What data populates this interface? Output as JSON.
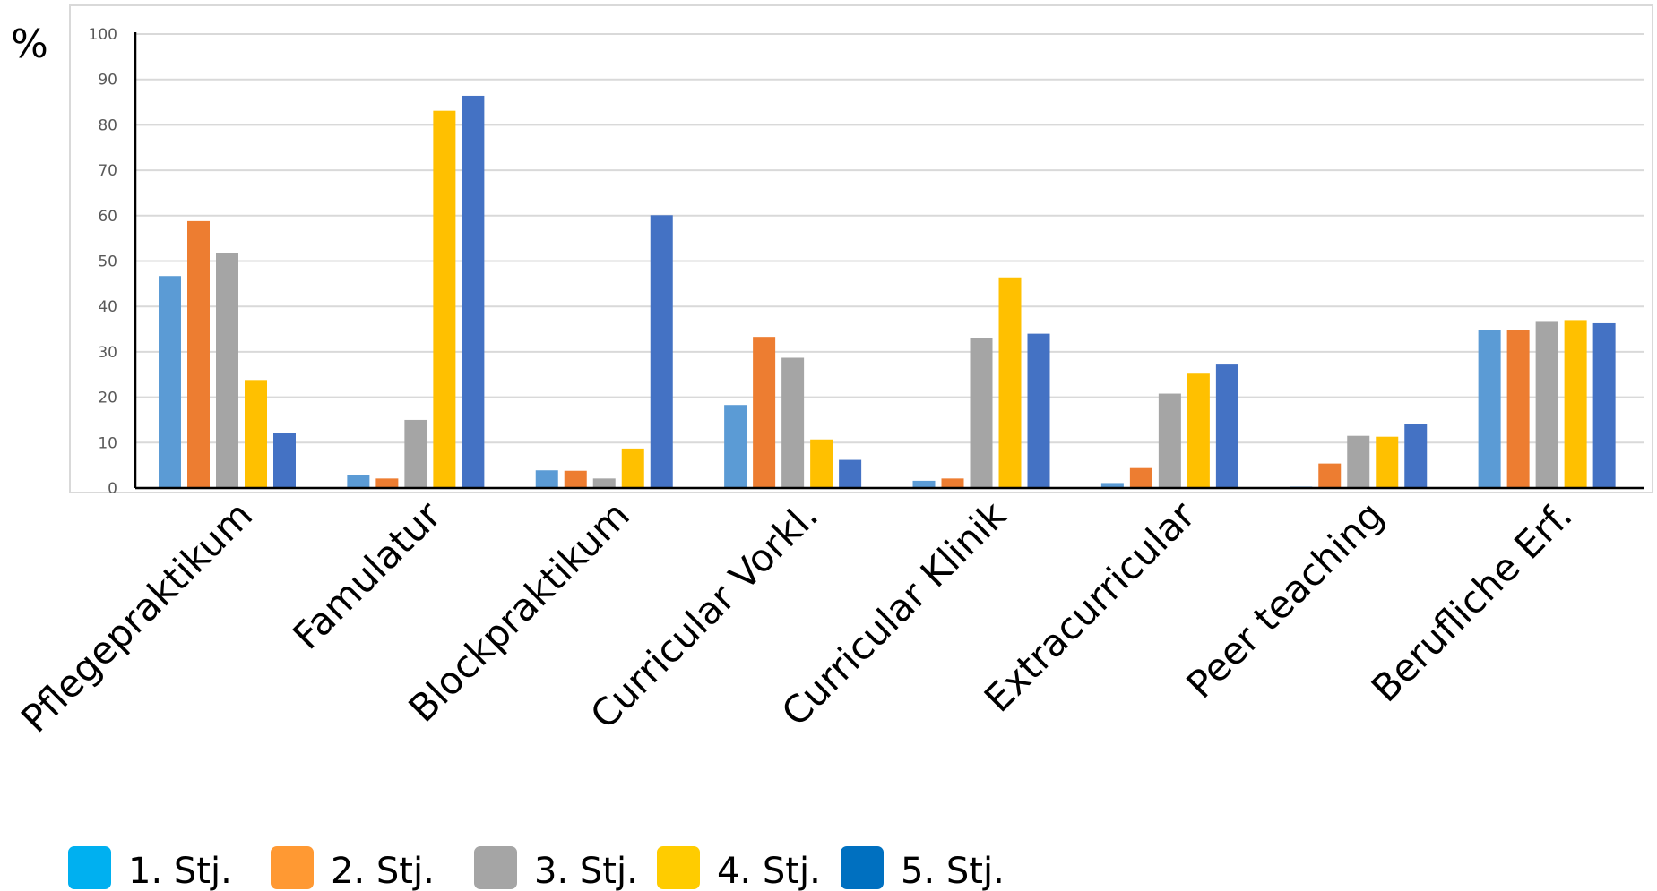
{
  "chart_data": {
    "type": "bar",
    "title": "",
    "xlabel": "",
    "ylabel": "%",
    "ylim": [
      0,
      100
    ],
    "yticks": [
      0,
      10,
      20,
      30,
      40,
      50,
      60,
      70,
      80,
      90,
      100
    ],
    "grid": true,
    "legend_position": "bottom-left",
    "categories": [
      "Pflegepraktikum",
      "Famulatur",
      "Blockpraktikum",
      "Curricular Vorkl.",
      "Curricular Klinik",
      "Extracurricular",
      "Peer teaching",
      "Berufliche Erf."
    ],
    "series": [
      {
        "name": "1. Stj.",
        "color": "#5B9BD5",
        "legend_color": "#00B0F0",
        "values": [
          46.7,
          2.9,
          3.9,
          18.3,
          1.6,
          1.1,
          0.3,
          34.8
        ]
      },
      {
        "name": "2. Stj.",
        "color": "#ED7D31",
        "legend_color": "#FF9933",
        "values": [
          58.8,
          2.1,
          3.8,
          33.3,
          2.1,
          4.4,
          5.4,
          34.8
        ]
      },
      {
        "name": "3. Stj.",
        "color": "#A5A5A5",
        "legend_color": "#A5A5A5",
        "values": [
          51.7,
          15.0,
          2.1,
          28.7,
          33.0,
          20.8,
          11.5,
          36.6
        ]
      },
      {
        "name": "4. Stj.",
        "color": "#FFC000",
        "legend_color": "#FFCC00",
        "values": [
          23.8,
          83.1,
          8.7,
          10.7,
          46.4,
          25.2,
          11.3,
          37.0
        ]
      },
      {
        "name": "5. Stj.",
        "color": "#4472C4",
        "legend_color": "#0070C0",
        "values": [
          12.2,
          86.4,
          60.1,
          6.2,
          34.0,
          27.2,
          14.1,
          36.3
        ]
      }
    ]
  }
}
